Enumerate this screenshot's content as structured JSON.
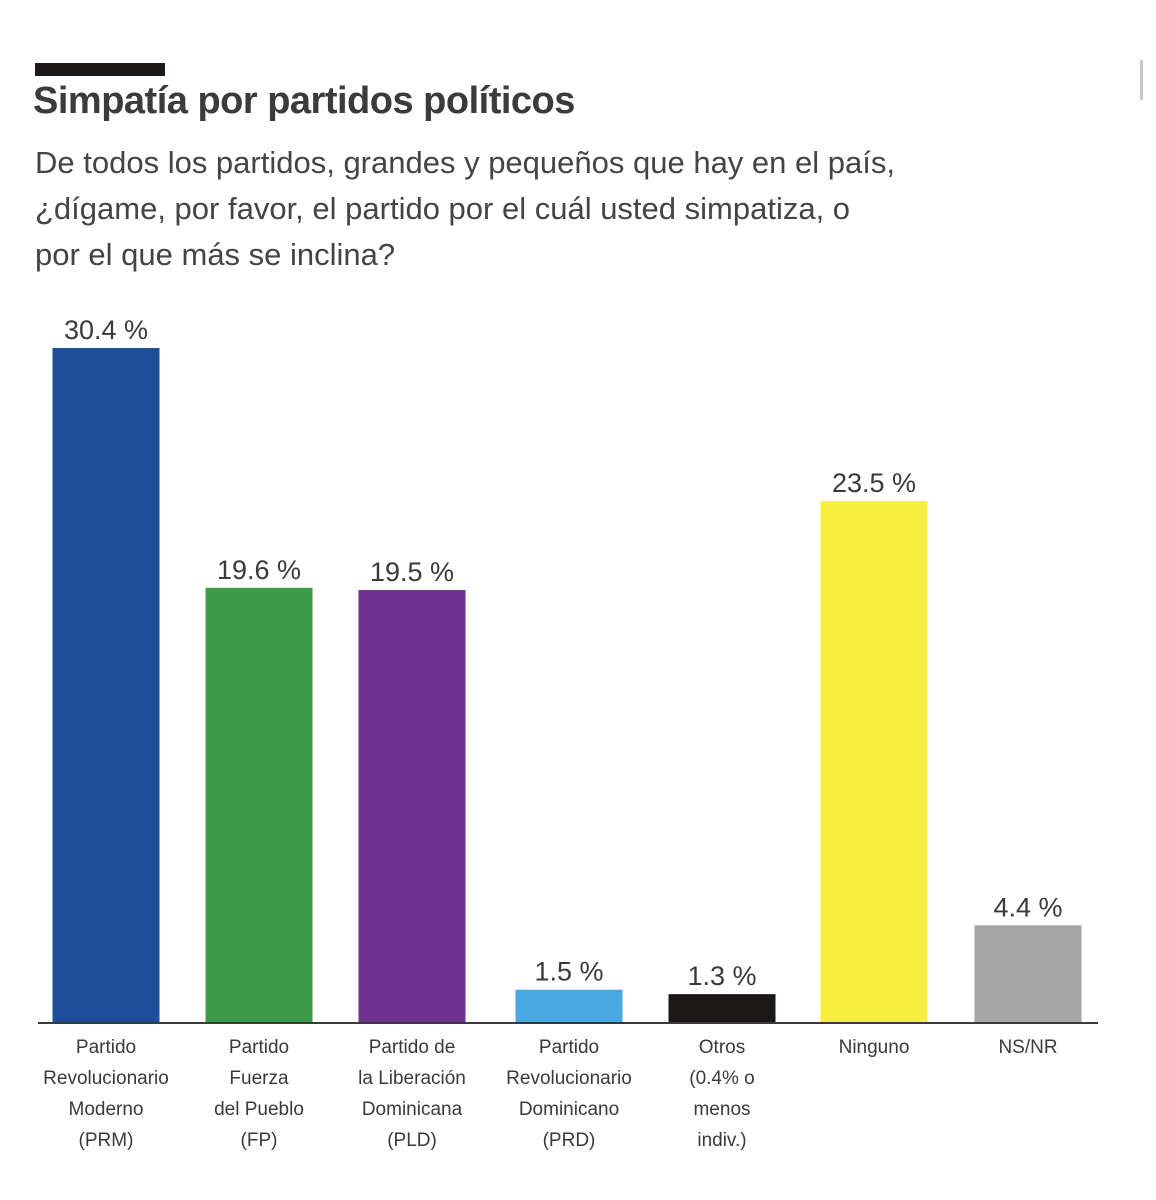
{
  "colors": {
    "background": "#ffffff",
    "title_rule": "#1f1a1a",
    "text": "#3a3a3a",
    "axis": "#3a3a3a"
  },
  "chart_data": {
    "type": "bar",
    "title": "Simpatía por partidos políticos",
    "subtitle": "De todos los partidos, grandes y pequeños que hay en el país, ¿dígame, por favor, el partido por el cuál usted simpatiza, o por el que más se inclina?",
    "xlabel": "",
    "ylabel": "",
    "ylim": [
      0,
      30.4
    ],
    "grid": false,
    "legend": "none",
    "categories": [
      "Partido Revolucionario Moderno (PRM)",
      "Partido Fuerza del Pueblo (FP)",
      "Partido de la Liberación Dominicana (PLD)",
      "Partido Revolucionario Dominicano (PRD)",
      "Otros (0.4% o menos indiv.)",
      "Ninguno",
      "NS/NR"
    ],
    "category_label_lines": [
      [
        "Partido",
        "Revolucionario",
        "Moderno",
        "(PRM)"
      ],
      [
        "Partido",
        "Fuerza",
        "del Pueblo",
        "(FP)"
      ],
      [
        "Partido de",
        "la Liberación",
        "Dominicana",
        "(PLD)"
      ],
      [
        "Partido",
        "Revolucionario",
        "Dominicano",
        "(PRD)"
      ],
      [
        "Otros",
        "(0.4% o",
        "menos",
        "indiv.)"
      ],
      [
        "Ninguno"
      ],
      [
        "NS/NR"
      ]
    ],
    "values": [
      30.4,
      19.6,
      19.5,
      1.5,
      1.3,
      23.5,
      4.4
    ],
    "value_labels": [
      "30.4 %",
      "19.6 %",
      "19.5 %",
      "1.5 %",
      "1.3 %",
      "23.5 %",
      "4.4 %"
    ],
    "bar_colors": [
      "#1f4e99",
      "#3d9b48",
      "#6e3290",
      "#4aa8e0",
      "#1c1818",
      "#f7ee3e",
      "#a6a6a6"
    ]
  }
}
